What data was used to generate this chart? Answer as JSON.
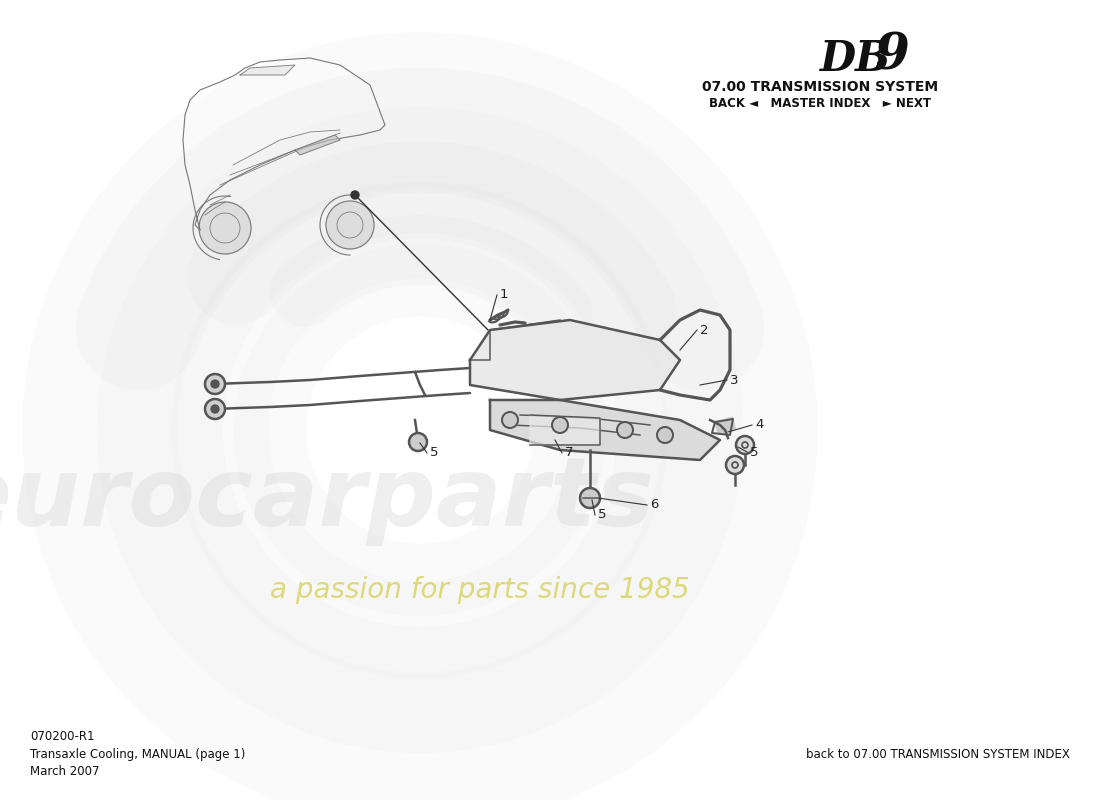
{
  "title_db9_text": "DB",
  "title_9": "9",
  "title_system": "07.00 TRANSMISSION SYSTEM",
  "nav_text": "BACK ◄   MASTER INDEX   ► NEXT",
  "part_number": "070200-R1",
  "part_name": "Transaxle Cooling, MANUAL",
  "page_info": "(page 1)",
  "date": "March 2007",
  "footer_right": "back to 07.00 TRANSMISSION SYSTEM INDEX",
  "watermark1": "eurocarparts",
  "watermark2": "a passion for parts since 1985",
  "bg_color": "#ffffff",
  "line_color": "#555555",
  "label_color": "#222222"
}
